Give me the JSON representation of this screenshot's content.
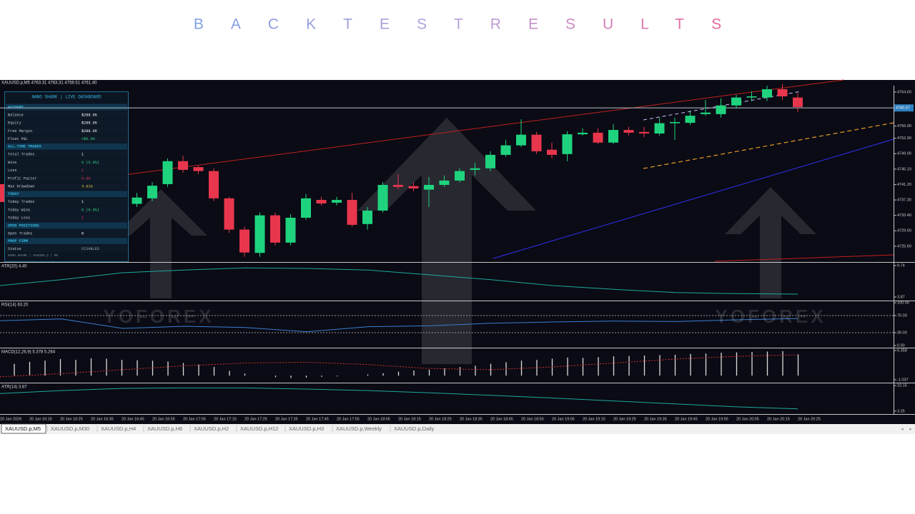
{
  "page_title": "BACKTESTRESULTS",
  "chart_data": {
    "type": "candlestick",
    "header": "XAUUSD.p,M5  4763.31 4763.31 4759.51 4761.40",
    "open": [
      4736.3,
      4737.7,
      4741.3,
      4747.1,
      4745.6,
      4744.6,
      4737.7,
      4729.8,
      4723.9,
      4733.4,
      4726.5,
      4732.8,
      4737.3,
      4736.6,
      4737.3,
      4731.2,
      4734.6,
      4741.1,
      4740.8,
      4739.9,
      4741.1,
      4742.2,
      4744.9,
      4745.3,
      4748.7,
      4751.1,
      4753.8,
      4750.0,
      4748.9,
      4753.9,
      4754.3,
      4751.8,
      4755.0,
      4754.5,
      4754.1,
      4756.7,
      4756.8,
      4759.0,
      4759.0,
      4761.2,
      4763.2,
      4763.2,
      4765.3,
      4763.2
    ],
    "high": [
      4739.1,
      4741.8,
      4747.8,
      4748.5,
      4746.0,
      4745.3,
      4738.1,
      4730.5,
      4734.1,
      4734.1,
      4733.7,
      4738.8,
      4738.1,
      4738.1,
      4739.1,
      4735.5,
      4741.8,
      4743.8,
      4741.7,
      4743.1,
      4743.5,
      4745.3,
      4746.7,
      4749.6,
      4752.5,
      4757.7,
      4754.5,
      4751.8,
      4754.7,
      4755.4,
      4755.4,
      4756.5,
      4755.8,
      4755.8,
      4758.1,
      4758.1,
      4759.9,
      4762.6,
      4763.0,
      4763.9,
      4764.8,
      4766.2,
      4766.6,
      4764.4
    ],
    "low": [
      4735.5,
      4737.0,
      4740.6,
      4744.2,
      4743.8,
      4737.0,
      4729.0,
      4722.9,
      4722.9,
      4725.8,
      4725.8,
      4732.3,
      4735.9,
      4735.9,
      4730.5,
      4729.8,
      4734.1,
      4740.0,
      4739.5,
      4735.5,
      4740.6,
      4741.7,
      4743.5,
      4744.6,
      4748.2,
      4750.7,
      4748.9,
      4747.8,
      4747.1,
      4753.6,
      4751.4,
      4751.4,
      4753.6,
      4753.2,
      4753.6,
      4752.5,
      4756.3,
      4758.6,
      4758.1,
      4760.4,
      4762.3,
      4762.3,
      4762.6,
      4759.5
    ],
    "close": [
      4737.9,
      4740.9,
      4747.1,
      4744.9,
      4744.6,
      4737.7,
      4729.8,
      4724.0,
      4733.4,
      4726.5,
      4732.8,
      4737.7,
      4736.4,
      4737.3,
      4731.0,
      4734.6,
      4741.1,
      4740.6,
      4740.2,
      4741.1,
      4742.2,
      4744.6,
      4745.3,
      4748.7,
      4751.1,
      4753.8,
      4749.6,
      4748.7,
      4753.9,
      4754.3,
      4751.8,
      4755.0,
      4754.3,
      4754.1,
      4756.7,
      4757.0,
      4758.6,
      4759.4,
      4761.2,
      4763.2,
      4763.5,
      4765.3,
      4763.5,
      4760.8
    ],
    "up_color": "#1fd37e",
    "down_color": "#e8364c",
    "ylim": [
      4721.6,
      4766.2
    ],
    "yticks": [
      {
        "value": 4764.6,
        "label": "4764.60"
      },
      {
        "value": 4756,
        "label": "4756.00"
      },
      {
        "value": 4752.9,
        "label": "4752.90"
      },
      {
        "value": 4749,
        "label": "4749.00"
      },
      {
        "value": 4745.1,
        "label": "4745.10"
      },
      {
        "value": 4741.2,
        "label": "4741.20"
      },
      {
        "value": 4737.3,
        "label": "4737.30"
      },
      {
        "value": 4733.4,
        "label": "4733.40"
      },
      {
        "value": 4729.5,
        "label": "4729.50"
      },
      {
        "value": 4725.6,
        "label": "4725.60"
      }
    ],
    "current_price": 4760.57,
    "x_labels": [
      "20 Jan 2026",
      "20 Jan 16:15",
      "20 Jan 16:25",
      "20 Jan 16:35",
      "20 Jan 16:45",
      "20 Jan 16:55",
      "20 Jan 17:05",
      "20 Jan 17:15",
      "20 Jan 17:25",
      "20 Jan 17:35",
      "20 Jan 17:45",
      "20 Jan 17:55",
      "20 Jan 18:05",
      "20 Jan 18:15",
      "20 Jan 18:25",
      "20 Jan 18:35",
      "20 Jan 18:45",
      "20 Jan 18:55",
      "20 Jan 19:05",
      "20 Jan 19:15",
      "20 Jan 19:25",
      "20 Jan 19:35",
      "20 Jan 19:45",
      "20 Jan 19:55",
      "20 Jan 20:05",
      "20 Jan 20:15",
      "20 Jan 20:25"
    ],
    "indicators": [
      {
        "label": "ATR(20) 4.40",
        "color": "#1fa89a",
        "values": [
          6.0,
          7.1,
          8.4,
          8.9,
          9.3,
          9.2,
          8.9,
          8.0,
          7.1,
          6.0,
          5.3,
          4.7,
          4.5,
          4.4
        ],
        "ylim": [
          3.2,
          10.27
        ],
        "yticks": [
          9.74,
          3.87
        ]
      },
      {
        "label": "RSI(14) 63.20",
        "color": "#3a7fd0",
        "values": [
          58,
          62,
          40,
          45,
          42,
          32,
          44,
          46,
          52,
          55,
          57,
          56,
          60,
          63.2
        ],
        "ylim": [
          -5.1,
          103.4
        ],
        "yticks": [
          {
            "value": 100,
            "label": "100.00"
          },
          {
            "value": 70,
            "label": "70.00"
          },
          {
            "value": 30,
            "label": "30.00"
          },
          {
            "value": 0,
            "label": "0.00"
          }
        ],
        "dotted_levels": [
          70,
          30
        ]
      },
      {
        "label": "MACD(12,26,9) 5.378 5.264",
        "color": "#dddddd",
        "values": [
          3.0,
          3.5,
          3.8,
          4.2,
          4.0,
          4.4,
          4.3,
          4.0,
          3.9,
          3.8,
          3.6,
          3.2,
          2.8,
          2.2,
          1.2,
          0.5,
          0.0,
          -0.4,
          -0.6,
          -0.5,
          -0.3,
          -0.2,
          0.0,
          0.3,
          0.6,
          1.0,
          1.3,
          1.5,
          1.8,
          2.2,
          2.5,
          3.0,
          3.4,
          3.8,
          4.0,
          4.3,
          4.6,
          4.5,
          4.7,
          4.9,
          5.0,
          5.1,
          5.2,
          5.3,
          5.5,
          5.6,
          5.8,
          5.9,
          6.0,
          6.1,
          6.2,
          5.378
        ],
        "signal": {
          "color": "#d23030",
          "values": [
            -0.3,
            0.5,
            1.5,
            2.5,
            3.2,
            3.4,
            2.8,
            1.8,
            1.5,
            2.2,
            3.2,
            4.2,
            4.9,
            5.264
          ]
        },
        "ylim": [
          -1.78,
          6.91
        ],
        "yticks": [
          6.358,
          -1.037
        ]
      },
      {
        "label": "ATR(14) 3.87",
        "color": "#1fa89a",
        "values": [
          8.0,
          8.8,
          9.4,
          9.5,
          9.5,
          9.2,
          8.8,
          8.2,
          7.5,
          6.8,
          6.0,
          5.2,
          4.4,
          3.87
        ],
        "ylim": [
          2.46,
          10.74
        ],
        "yticks": [
          10.15,
          3.25
        ]
      }
    ]
  },
  "dashboard": {
    "title": "NANO SHARK  |  LIVE DASHBOARD",
    "sections": [
      {
        "title": "ACCOUNT",
        "rows": [
          {
            "label": "Balance",
            "value": "$288.05",
            "color": "#ffffff"
          },
          {
            "label": "Equity",
            "value": "$288.05",
            "color": "#ffffff"
          },
          {
            "label": "Free Margin",
            "value": "$288.05",
            "color": "#ffffff"
          },
          {
            "label": "Float P&L",
            "value": "+$0.00",
            "color": "#2fd47f"
          }
        ]
      },
      {
        "title": "ALL-TIME TRADES",
        "rows": [
          {
            "label": "Total Trades",
            "value": "1",
            "color": "#ffffff"
          },
          {
            "label": "Wins",
            "value": "0 (0.0%)",
            "color": "#2fd47f"
          },
          {
            "label": "Loss",
            "value": "1",
            "color": "#e8364c"
          },
          {
            "label": "Profit Factor",
            "value": "0.00",
            "color": "#e8364c"
          },
          {
            "label": "Max Drawdown",
            "value": "3.61%",
            "color": "#f0d040"
          }
        ]
      },
      {
        "title": "TODAY",
        "rows": [
          {
            "label": "Today Trades",
            "value": "1",
            "color": "#ffffff"
          },
          {
            "label": "Today Wins",
            "value": "0 (0.0%)",
            "color": "#2fd47f"
          },
          {
            "label": "Today Loss",
            "value": "1",
            "color": "#e8364c"
          }
        ]
      },
      {
        "title": "OPEN POSITIONS",
        "rows": [
          {
            "label": "Open Trades",
            "value": "0",
            "color": "#ffffff"
          }
        ]
      },
      {
        "title": "PROP FIRM",
        "rows": [
          {
            "label": "Status",
            "value": "DISABLED",
            "color": "#9aa4b0"
          }
        ]
      }
    ],
    "footer": "NANO SHARK | XAUUSD.p | M5"
  },
  "watermarks": [
    "YOFOREX",
    "YOFOREX"
  ],
  "tabs": [
    "XAUUSD.p,M5",
    "XAUUSD.p,M30",
    "XAUUSD.p,H4",
    "XAUUSD.p,H6",
    "XAUUSD.p,H2",
    "XAUUSD.p,H12",
    "XAUUSD.p,H3",
    "XAUUSD.p,Weekly",
    "XAUUSD.p,Daily"
  ]
}
